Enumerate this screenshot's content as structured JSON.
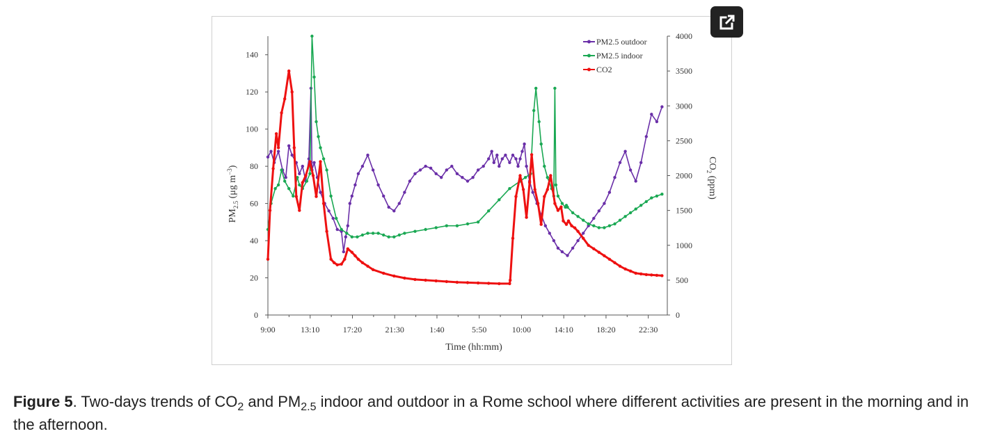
{
  "caption": {
    "label": "Figure 5",
    "text_parts": [
      ". Two-days trends of CO",
      "2",
      " and PM",
      "2.5",
      " indoor and outdoor in a Rome school where different activities are present in the morning and in the afternoon."
    ]
  },
  "popout": {
    "icon": "external-link-icon"
  },
  "colors": {
    "outdoor": "#6a2fa8",
    "indoor": "#1aa853",
    "co2": "#ee1111",
    "axis": "#555555"
  },
  "chart_data": {
    "type": "line",
    "title": "",
    "xlabel": "Time (hh:mm)",
    "ylabel_left": {
      "main": "PM",
      "sub": "2.5",
      "rest": " (μg m",
      "sup": "−3",
      "end": ")"
    },
    "ylabel_right": {
      "main": "CO",
      "sub": "2",
      "rest": " (ppm)"
    },
    "x_ticks": [
      "9:00",
      "13:10",
      "17:20",
      "21:30",
      "1:40",
      "5:50",
      "10:00",
      "14:10",
      "18:20",
      "22:30"
    ],
    "x_range_hours": [
      0,
      38
    ],
    "y_left_range": [
      0,
      150
    ],
    "y_left_ticks": [
      0,
      20,
      40,
      60,
      80,
      100,
      120,
      140
    ],
    "y_right_range": [
      0,
      4000
    ],
    "y_right_ticks": [
      0,
      500,
      1000,
      1500,
      2000,
      2500,
      3000,
      3500,
      4000
    ],
    "legend_placement": "top-right",
    "grid": false,
    "series": [
      {
        "name": "PM2.5 outdoor",
        "axis": "left",
        "marker": "circle",
        "x": [
          0,
          0.3,
          0.6,
          1,
          1.4,
          1.7,
          2,
          2.3,
          2.7,
          3,
          3.3,
          3.6,
          3.9,
          4.1,
          4.2,
          4.4,
          4.7,
          5,
          5.4,
          5.8,
          6.2,
          6.6,
          7,
          7.2,
          7.4,
          7.6,
          7.8,
          8,
          8.3,
          8.6,
          9,
          9.5,
          10,
          10.5,
          11,
          11.5,
          12,
          12.5,
          13,
          13.5,
          14,
          14.5,
          15,
          15.5,
          16,
          16.5,
          17,
          17.5,
          18,
          18.5,
          19,
          19.5,
          20,
          20.5,
          21,
          21.3,
          21.5,
          21.8,
          22,
          22.3,
          22.6,
          23,
          23.3,
          23.6,
          23.8,
          24,
          24.2,
          24.4,
          24.6,
          24.9,
          25.2,
          25.6,
          26,
          26.4,
          26.8,
          27.2,
          27.6,
          28,
          28.5,
          29,
          29.5,
          30,
          30.5,
          31,
          31.5,
          32,
          32.5,
          33,
          33.5,
          34,
          34.5,
          35,
          35.5,
          36,
          36.5,
          37,
          37.5
        ],
        "values": [
          85,
          88,
          82,
          88,
          78,
          74,
          91,
          86,
          82,
          76,
          80,
          72,
          84,
          122,
          78,
          82,
          74,
          66,
          60,
          56,
          52,
          46,
          45,
          34,
          42,
          48,
          60,
          64,
          70,
          76,
          80,
          86,
          78,
          70,
          64,
          58,
          56,
          60,
          66,
          72,
          76,
          78,
          80,
          79,
          76,
          74,
          78,
          80,
          76,
          74,
          72,
          74,
          78,
          80,
          84,
          88,
          82,
          86,
          80,
          84,
          86,
          82,
          86,
          84,
          80,
          84,
          88,
          92,
          80,
          72,
          66,
          60,
          54,
          48,
          44,
          40,
          36,
          34,
          32,
          36,
          40,
          44,
          48,
          52,
          56,
          60,
          66,
          74,
          82,
          88,
          78,
          72,
          82,
          96,
          108,
          104,
          112
        ]
      },
      {
        "name": "PM2.5 indoor",
        "axis": "left",
        "marker": "circle",
        "x": [
          0,
          0.3,
          0.7,
          1,
          1.3,
          1.6,
          2,
          2.4,
          2.8,
          3,
          3.3,
          3.7,
          4,
          4.2,
          4.4,
          4.6,
          4.8,
          5,
          5.3,
          5.6,
          6,
          6.5,
          7,
          7.5,
          8,
          8.5,
          9,
          9.5,
          10,
          10.5,
          11,
          11.5,
          12,
          12.5,
          13,
          14,
          15,
          16,
          17,
          18,
          19,
          20,
          21,
          22,
          23,
          24,
          24.5,
          25,
          25.3,
          25.5,
          25.8,
          26,
          26.3,
          26.6,
          27,
          27.2,
          27.3,
          27.4,
          27.6,
          28,
          28.3,
          28.4,
          28.5,
          29,
          29.5,
          30,
          30.5,
          31,
          31.5,
          32,
          32.5,
          33,
          33.5,
          34,
          34.5,
          35,
          35.5,
          36,
          36.5,
          37,
          37.5
        ],
        "values": [
          46,
          60,
          68,
          70,
          78,
          72,
          68,
          64,
          74,
          70,
          68,
          72,
          76,
          150,
          128,
          104,
          96,
          90,
          84,
          78,
          64,
          52,
          46,
          44,
          42,
          42,
          43,
          44,
          44,
          44,
          43,
          42,
          42,
          43,
          44,
          45,
          46,
          47,
          48,
          48,
          49,
          50,
          56,
          62,
          68,
          72,
          74,
          76,
          110,
          122,
          104,
          92,
          80,
          74,
          68,
          64,
          122,
          70,
          64,
          60,
          58,
          59,
          58,
          55,
          53,
          51,
          49,
          48,
          47,
          47,
          48,
          49,
          51,
          53,
          55,
          57,
          59,
          61,
          63,
          64,
          65
        ]
      },
      {
        "name": "CO2",
        "axis": "right",
        "marker": "circle",
        "x": [
          0,
          0.2,
          0.5,
          0.8,
          1,
          1.3,
          1.6,
          2,
          2.3,
          2.5,
          2.7,
          3,
          3.3,
          3.6,
          4,
          4.3,
          4.6,
          5,
          5.3,
          5.6,
          6,
          6.3,
          6.6,
          7,
          7.3,
          7.6,
          8,
          8.3,
          8.6,
          9,
          9.5,
          10,
          11,
          12,
          13,
          14,
          15,
          16,
          17,
          18,
          19,
          20,
          21,
          22,
          23,
          23.05,
          23.3,
          23.6,
          24,
          24.3,
          24.6,
          24.9,
          25.1,
          25.4,
          25.7,
          26,
          26.3,
          26.6,
          26.9,
          27.1,
          27.3,
          27.6,
          27.9,
          28.1,
          28.4,
          28.6,
          28.9,
          29.2,
          29.5,
          30,
          30.5,
          31,
          31.5,
          32,
          32.5,
          33,
          33.5,
          34,
          34.5,
          35,
          35.5,
          36,
          36.5,
          37,
          37.5
        ],
        "values": [
          800,
          1500,
          2100,
          2600,
          2400,
          2900,
          3100,
          3500,
          3200,
          2400,
          1700,
          1500,
          1900,
          2000,
          2200,
          2000,
          1700,
          2200,
          1600,
          1200,
          800,
          750,
          720,
          730,
          800,
          950,
          900,
          850,
          800,
          750,
          700,
          650,
          600,
          560,
          530,
          510,
          500,
          490,
          480,
          470,
          465,
          460,
          455,
          450,
          450,
          500,
          1100,
          1700,
          2000,
          1800,
          1400,
          1900,
          2300,
          1800,
          1600,
          1300,
          1700,
          1800,
          2000,
          1800,
          1600,
          1500,
          1550,
          1350,
          1300,
          1350,
          1280,
          1250,
          1200,
          1100,
          1000,
          950,
          900,
          850,
          800,
          750,
          700,
          660,
          630,
          600,
          590,
          580,
          575,
          570,
          565
        ]
      }
    ]
  }
}
